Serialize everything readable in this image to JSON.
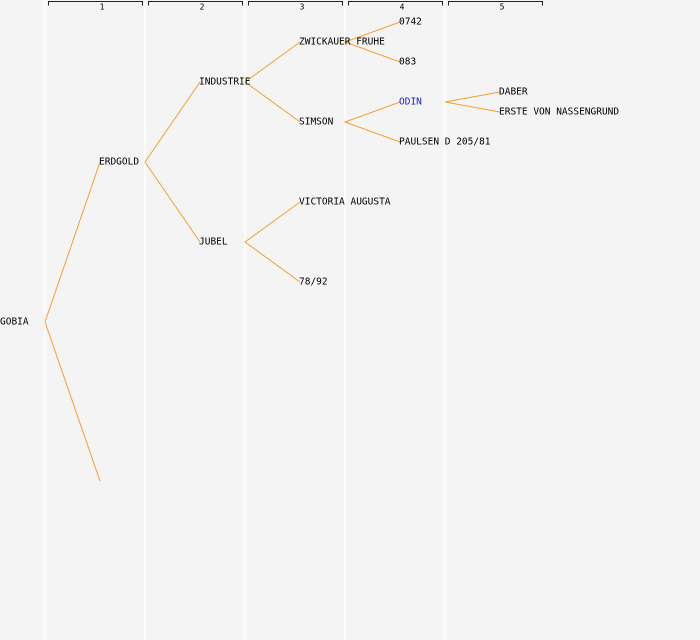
{
  "columns": [
    "1",
    "2",
    "3",
    "4",
    "5"
  ],
  "nodes": [
    "GOBIA",
    "ERDGOLD",
    "INDUSTRIE",
    "JUBEL",
    "ZWICKAUER FRUHE",
    "SIMSON",
    "VICTORIA AUGUSTA",
    "78/92",
    "0742",
    "083",
    "ODIN",
    "PAULSEN D 205/81",
    "DABER",
    "ERSTE VON NASSENGRUND"
  ]
}
